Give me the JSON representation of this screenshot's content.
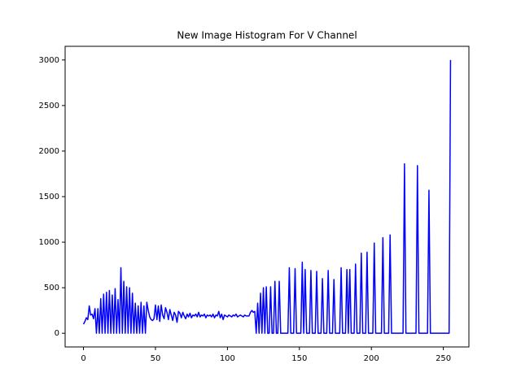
{
  "chart_data": {
    "type": "line",
    "title": "New Image Histogram For V Channel",
    "color": "#0000ff",
    "xlim": [
      -12.75,
      267.75
    ],
    "ylim": [
      -150,
      3150
    ],
    "xticks": [
      0,
      50,
      100,
      150,
      200,
      250
    ],
    "yticks": [
      0,
      500,
      1000,
      1500,
      2000,
      2500,
      3000
    ],
    "x": [
      0,
      1,
      2,
      3,
      4,
      5,
      6,
      7,
      8,
      9,
      10,
      11,
      12,
      13,
      14,
      15,
      16,
      17,
      18,
      19,
      20,
      21,
      22,
      23,
      24,
      25,
      26,
      27,
      28,
      29,
      30,
      31,
      32,
      33,
      34,
      35,
      36,
      37,
      38,
      39,
      40,
      41,
      42,
      43,
      44,
      45,
      46,
      47,
      48,
      49,
      50,
      51,
      52,
      53,
      54,
      55,
      56,
      57,
      58,
      59,
      60,
      61,
      62,
      63,
      64,
      65,
      66,
      67,
      68,
      69,
      70,
      71,
      72,
      73,
      74,
      75,
      76,
      77,
      78,
      79,
      80,
      81,
      82,
      83,
      84,
      85,
      86,
      87,
      88,
      89,
      90,
      91,
      92,
      93,
      94,
      95,
      96,
      97,
      98,
      99,
      100,
      101,
      102,
      103,
      104,
      105,
      106,
      107,
      108,
      109,
      110,
      111,
      112,
      113,
      114,
      115,
      116,
      117,
      118,
      119,
      120,
      121,
      122,
      123,
      124,
      125,
      126,
      127,
      128,
      129,
      130,
      131,
      132,
      133,
      134,
      135,
      136,
      137,
      138,
      139,
      140,
      141,
      142,
      143,
      144,
      145,
      146,
      147,
      148,
      149,
      150,
      151,
      152,
      153,
      154,
      155,
      156,
      157,
      158,
      159,
      160,
      161,
      162,
      163,
      164,
      165,
      166,
      167,
      168,
      169,
      170,
      171,
      172,
      173,
      174,
      175,
      176,
      177,
      178,
      179,
      180,
      181,
      182,
      183,
      184,
      185,
      186,
      187,
      188,
      189,
      190,
      191,
      192,
      193,
      194,
      195,
      196,
      197,
      198,
      199,
      200,
      201,
      202,
      203,
      204,
      205,
      206,
      207,
      208,
      209,
      210,
      211,
      212,
      213,
      214,
      215,
      216,
      217,
      218,
      219,
      220,
      221,
      222,
      223,
      224,
      225,
      226,
      227,
      228,
      229,
      230,
      231,
      232,
      233,
      234,
      235,
      236,
      237,
      238,
      239,
      240,
      241,
      242,
      243,
      244,
      245,
      246,
      247,
      248,
      249,
      250,
      251,
      252,
      253,
      254,
      255
    ],
    "values": [
      100,
      130,
      170,
      150,
      300,
      200,
      210,
      160,
      270,
      0,
      270,
      0,
      380,
      0,
      430,
      0,
      450,
      0,
      470,
      0,
      420,
      0,
      490,
      0,
      370,
      0,
      720,
      0,
      570,
      0,
      510,
      0,
      500,
      0,
      440,
      0,
      330,
      0,
      300,
      0,
      340,
      0,
      300,
      0,
      340,
      250,
      180,
      150,
      140,
      160,
      310,
      150,
      300,
      130,
      310,
      200,
      160,
      280,
      230,
      150,
      260,
      200,
      140,
      230,
      200,
      120,
      240,
      220,
      170,
      230,
      190,
      160,
      210,
      180,
      220,
      170,
      200,
      190,
      210,
      180,
      230,
      180,
      200,
      190,
      210,
      170,
      200,
      190,
      200,
      180,
      210,
      170,
      200,
      190,
      240,
      170,
      210,
      150,
      200,
      190,
      180,
      200,
      190,
      180,
      200,
      190,
      210,
      180,
      190,
      200,
      190,
      180,
      200,
      190,
      190,
      190,
      230,
      250,
      230,
      240,
      0,
      330,
      0,
      440,
      0,
      500,
      0,
      510,
      0,
      0,
      510,
      0,
      0,
      570,
      0,
      0,
      570,
      0,
      0,
      0,
      0,
      0,
      0,
      720,
      0,
      0,
      0,
      710,
      0,
      0,
      0,
      0,
      780,
      0,
      700,
      0,
      0,
      0,
      690,
      0,
      0,
      0,
      680,
      0,
      0,
      0,
      600,
      0,
      0,
      0,
      690,
      0,
      0,
      0,
      590,
      0,
      0,
      0,
      0,
      720,
      0,
      0,
      0,
      700,
      0,
      700,
      0,
      0,
      0,
      760,
      0,
      0,
      0,
      880,
      0,
      0,
      0,
      890,
      0,
      0,
      0,
      0,
      990,
      0,
      0,
      0,
      0,
      0,
      1050,
      0,
      0,
      0,
      0,
      1080,
      0,
      0,
      0,
      0,
      0,
      0,
      0,
      0,
      0,
      1860,
      0,
      0,
      0,
      0,
      0,
      0,
      0,
      0,
      1840,
      0,
      0,
      0,
      0,
      0,
      0,
      0,
      1570,
      0,
      0,
      0,
      0,
      0,
      0,
      0,
      0,
      0,
      0,
      0,
      0,
      0,
      0,
      3000
    ]
  }
}
